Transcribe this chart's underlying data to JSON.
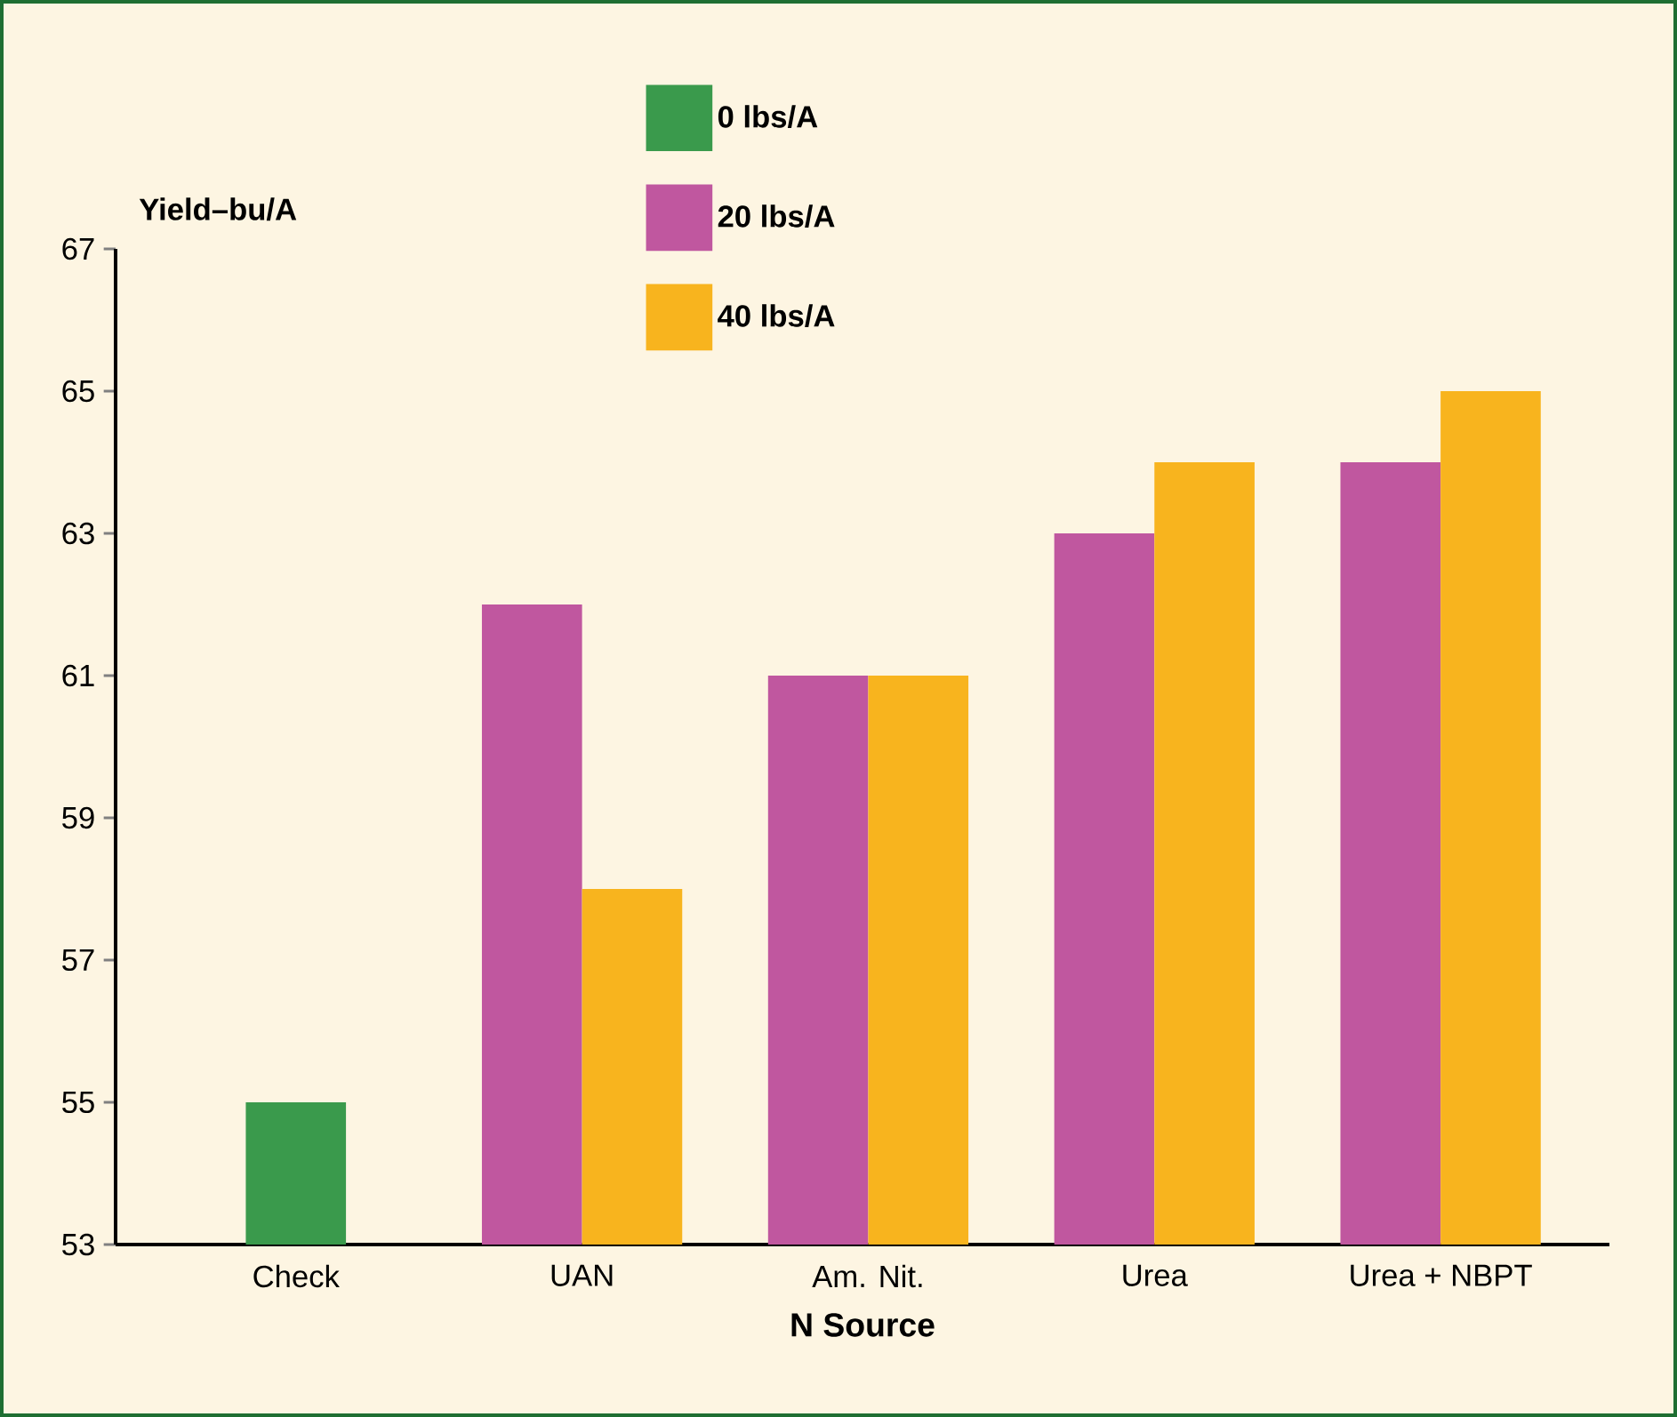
{
  "chart_data": {
    "type": "bar",
    "xlabel": "N Source",
    "ylabel": "Yield–bu/A",
    "categories": [
      "Check",
      "UAN",
      "Am. Nit.",
      "Urea",
      "Urea + NBPT"
    ],
    "series": [
      {
        "name": "0 lbs/A",
        "color": "#3a9a4c",
        "values": [
          55,
          null,
          null,
          null,
          null
        ]
      },
      {
        "name": "20 lbs/A",
        "color": "#c0579f",
        "values": [
          null,
          62,
          61,
          63,
          64
        ]
      },
      {
        "name": "40 lbs/A",
        "color": "#f8b41e",
        "values": [
          null,
          58,
          61,
          64,
          65
        ]
      }
    ],
    "ylim": [
      53,
      67
    ],
    "yticks": [
      53,
      55,
      57,
      59,
      61,
      63,
      65,
      67
    ],
    "legend": "top"
  }
}
